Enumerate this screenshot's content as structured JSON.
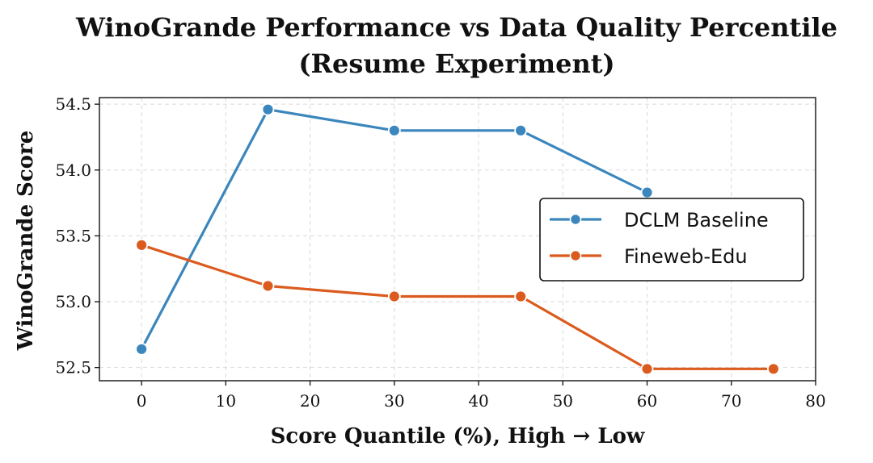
{
  "chart_data": {
    "type": "line",
    "title": [
      "WinoGrande Performance vs Data Quality Percentile",
      "(Resume Experiment)"
    ],
    "xlabel": "Score Quantile (%), High → Low",
    "ylabel": "WinoGrande Score",
    "xlim": [
      -5,
      80
    ],
    "ylim": [
      52.4,
      54.55
    ],
    "xticks": [
      0,
      10,
      20,
      30,
      40,
      50,
      60,
      70,
      80
    ],
    "yticks": [
      52.5,
      53.0,
      53.5,
      54.0,
      54.5
    ],
    "ytick_labels": [
      "52.5",
      "53.0",
      "53.5",
      "54.0",
      "54.5"
    ],
    "grid": true,
    "legend_position": "center-right",
    "series": [
      {
        "name": "DCLM Baseline",
        "color": "#3a86bd",
        "x": [
          0,
          15,
          30,
          45,
          60
        ],
        "y": [
          52.64,
          54.46,
          54.3,
          54.3,
          53.83
        ]
      },
      {
        "name": "Fineweb-Edu",
        "color": "#db5b1e",
        "x": [
          0,
          15,
          30,
          45,
          60,
          75
        ],
        "y": [
          53.43,
          53.12,
          53.04,
          53.04,
          52.49,
          52.49
        ]
      }
    ]
  }
}
